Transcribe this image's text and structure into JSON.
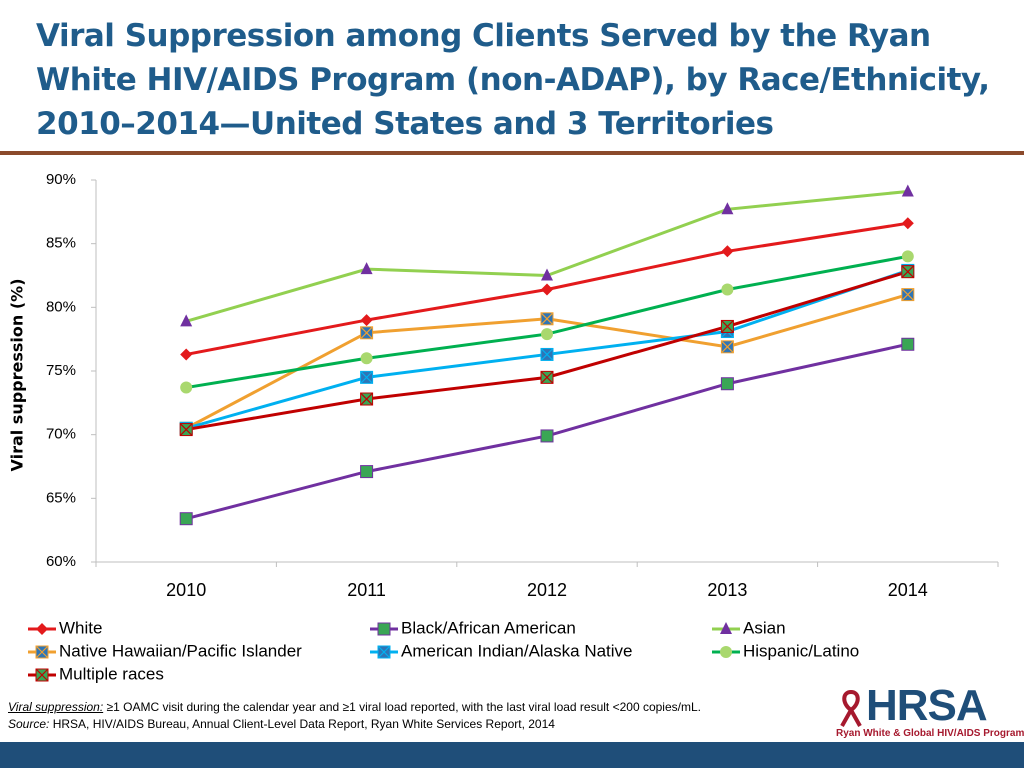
{
  "title": "Viral Suppression among Clients Served by the Ryan White HIV/AIDS Program (non-ADAP), by Race/Ethnicity, 2010–2014—United States and 3 Territories",
  "chart_data": {
    "type": "line",
    "y_label": "Viral suppression (%)",
    "categories": [
      "2010",
      "2011",
      "2012",
      "2013",
      "2014"
    ],
    "ylim": [
      60,
      90
    ],
    "yticks": [
      {
        "value": 60,
        "label": "60%"
      },
      {
        "value": 65,
        "label": "65%"
      },
      {
        "value": 70,
        "label": "70%"
      },
      {
        "value": 75,
        "label": "75%"
      },
      {
        "value": 80,
        "label": "80%"
      },
      {
        "value": 85,
        "label": "85%"
      },
      {
        "value": 90,
        "label": "90%"
      }
    ],
    "series": [
      {
        "name": "White",
        "color": "#e31a1c",
        "marker": "diamond",
        "marker_color": "#e31a1c",
        "values": [
          76.3,
          79.0,
          81.4,
          84.4,
          86.6
        ]
      },
      {
        "name": "Black/African American",
        "color": "#7030a0",
        "marker": "square",
        "marker_color": "#3aa655",
        "values": [
          63.4,
          67.1,
          69.9,
          74.0,
          77.1
        ]
      },
      {
        "name": "Asian",
        "color": "#92d050",
        "marker": "triangle",
        "marker_color": "#7030a0",
        "values": [
          78.9,
          83.0,
          82.5,
          87.7,
          89.1
        ]
      },
      {
        "name": "Native Hawaiian/Pacific Islander",
        "color": "#f0a030",
        "marker": "square-x",
        "marker_color": "#2e75b6",
        "values": [
          70.5,
          78.0,
          79.1,
          76.9,
          81.0
        ]
      },
      {
        "name": "American Indian/Alaska Native",
        "color": "#00b0f0",
        "marker": "square-x",
        "marker_color": "#2e75b6",
        "values": [
          70.5,
          74.5,
          76.3,
          78.1,
          82.9
        ]
      },
      {
        "name": "Hispanic/Latino",
        "color": "#00b050",
        "marker": "circle",
        "marker_color": "#a9d86e",
        "values": [
          73.7,
          76.0,
          77.9,
          81.4,
          84.0
        ]
      },
      {
        "name": "Multiple races",
        "color": "#c00000",
        "marker": "square-x",
        "marker_color": "#3aa655",
        "values": [
          70.4,
          72.8,
          74.5,
          78.5,
          82.8
        ]
      }
    ]
  },
  "footnote": {
    "term": "Viral suppression:",
    "text": "≥1 OAMC visit during the calendar year and ≥1 viral load reported, with the last viral load result <200 copies/mL."
  },
  "source": {
    "label": "Source:",
    "text": "HRSA, HIV/AIDS Bureau, Annual Client-Level Data Report, Ryan White Services Report, 2014"
  },
  "logo": {
    "name": "HRSA",
    "program": "Ryan White & Global HIV/AIDS Programs"
  }
}
